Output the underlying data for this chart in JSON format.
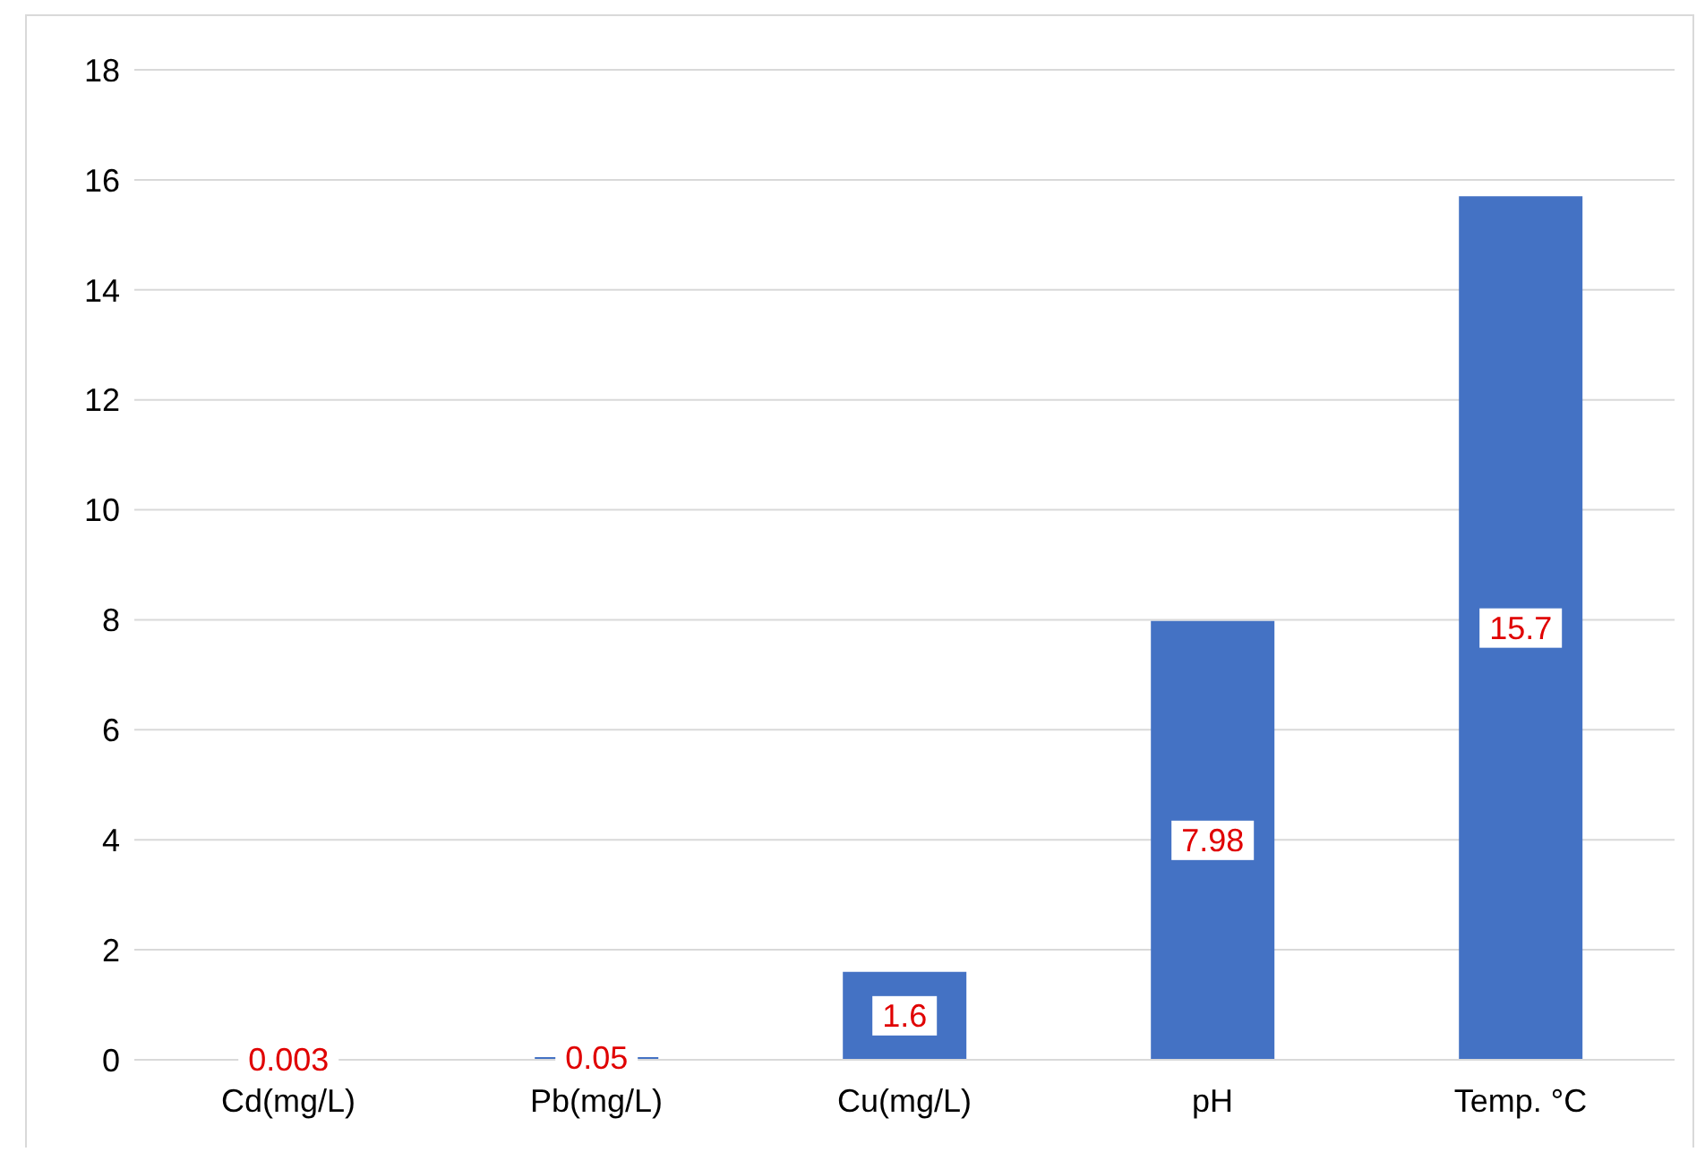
{
  "chart_data": {
    "type": "bar",
    "categories": [
      "Cd(mg/L)",
      "Pb(mg/L)",
      "Cu(mg/L)",
      "pH",
      "Temp. °C"
    ],
    "series": [
      {
        "color": "#4472c4",
        "values": [
          0.003,
          0.05,
          1.6,
          7.98,
          15.7
        ]
      }
    ],
    "ylim": [
      0,
      18
    ],
    "yticks": [
      0,
      2,
      4,
      6,
      8,
      10,
      12,
      14,
      16,
      18
    ],
    "grid": "y",
    "legend": false,
    "data_labels": true
  }
}
